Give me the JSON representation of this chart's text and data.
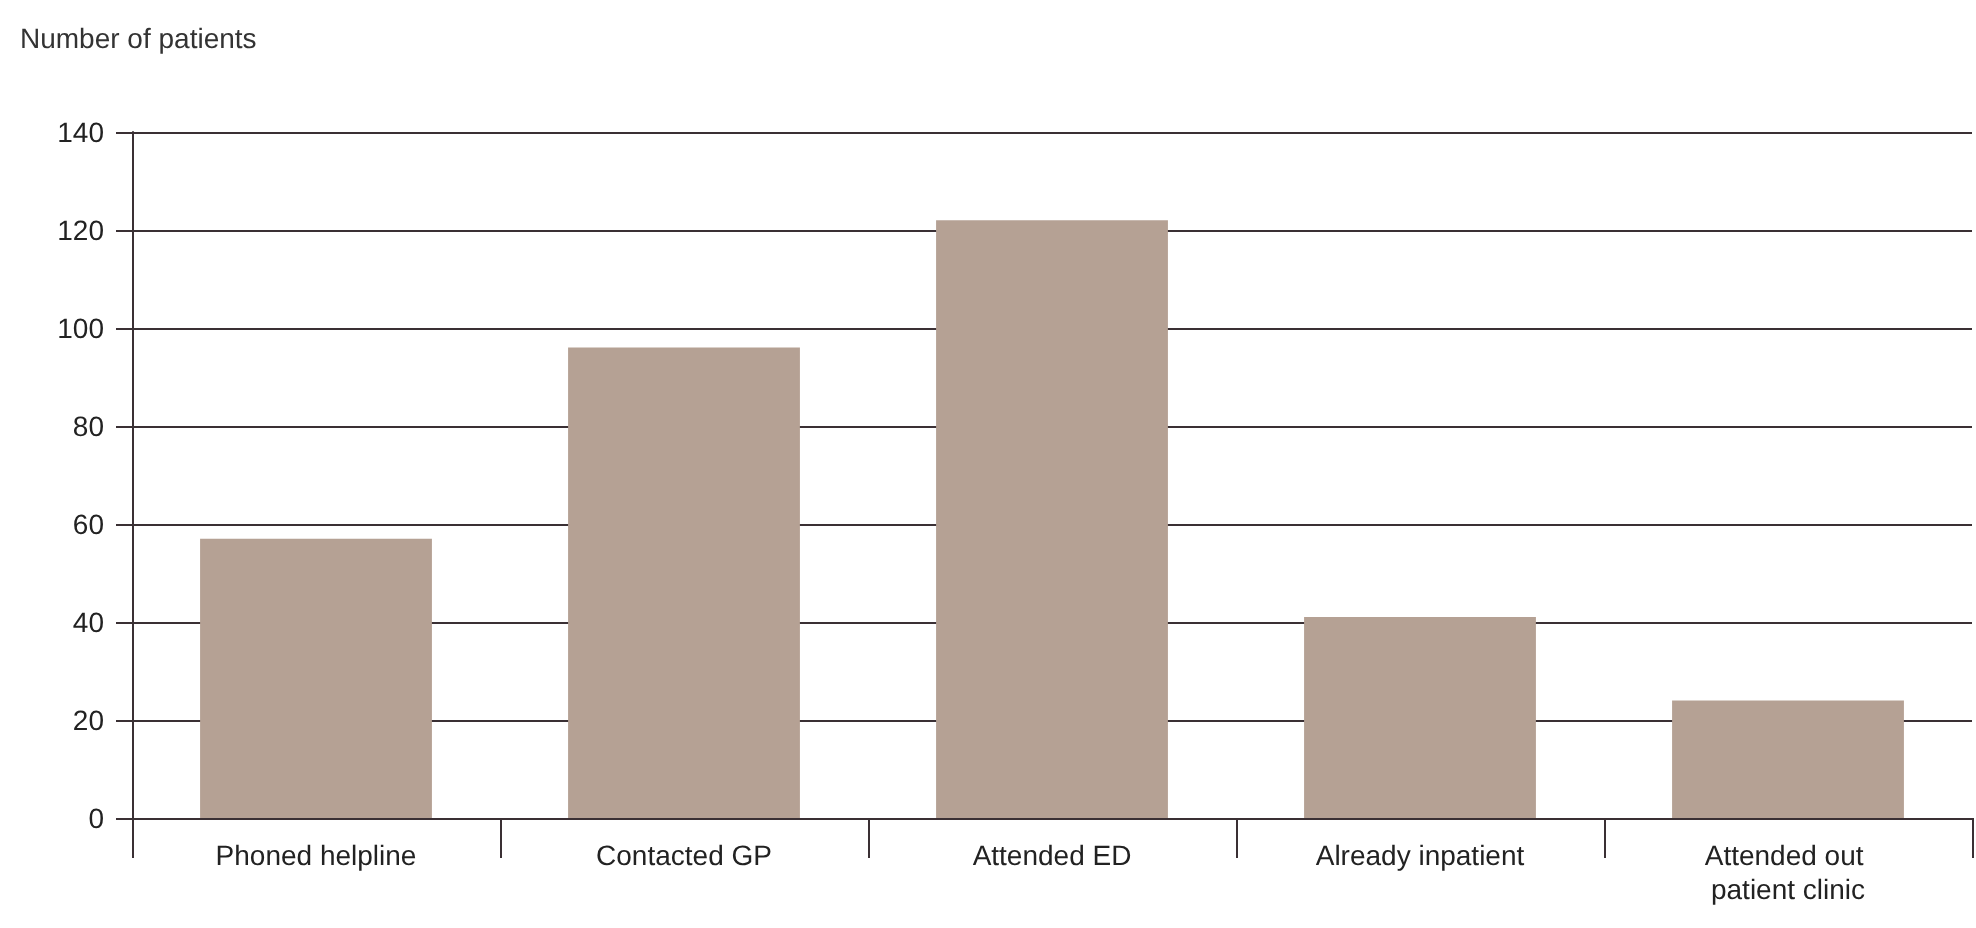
{
  "chart_data": {
    "type": "bar",
    "ylabel": "Number of patients",
    "categories": [
      "Phoned helpline",
      "Contacted GP",
      "Attended ED",
      "Already inpatient",
      "Attended out patient clinic"
    ],
    "values": [
      57,
      96,
      122,
      41,
      24
    ],
    "color": "#b5a194",
    "ylim": [
      0,
      140
    ],
    "yticks": [
      0,
      20,
      40,
      60,
      80,
      100,
      120,
      140
    ],
    "grid": "y"
  }
}
